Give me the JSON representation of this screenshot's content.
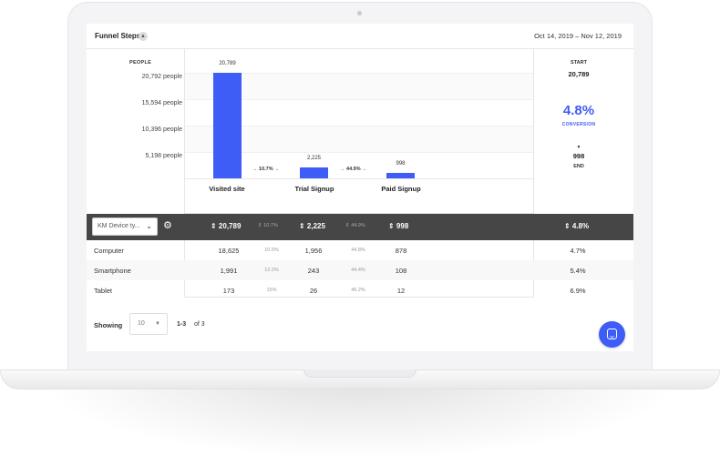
{
  "header": {
    "title": "Funnel Steps",
    "user_icon": "user-icon",
    "date_range": "Oct 14, 2019 – Nov 12, 2019"
  },
  "chart": {
    "y_label": "PEOPLE",
    "y_ticks": [
      "20,792 people",
      "15,594 people",
      "10,396 people",
      "5,198 people"
    ],
    "steps": [
      {
        "name": "Visited site",
        "value": 20789,
        "label": "20,789"
      },
      {
        "name": "Trial Signup",
        "value": 2225,
        "label": "2,225"
      },
      {
        "name": "Paid Signup",
        "value": 998,
        "label": "998"
      }
    ],
    "step_conversions": [
      "10.7%",
      "44.9%"
    ],
    "bar_color": "#3e5cf6"
  },
  "summary": {
    "start_label": "START",
    "start_value": "20,789",
    "conversion_pct": "4.8%",
    "conversion_label": "CONVERSION",
    "arrow": "▼",
    "end_value": "998",
    "end_label": "END"
  },
  "breakdown": {
    "dropdown_value": "KM Device ty...",
    "totals": {
      "step1": "⇕ 20,789",
      "conv1": "⇕ 10.7%",
      "step2": "⇕ 2,225",
      "conv2": "⇕ 44.9%",
      "step3": "⇕ 998",
      "overall": "⇕ 4.8%"
    },
    "rows": [
      {
        "name": "Computer",
        "step1": "18,625",
        "conv1": "10.5%",
        "step2": "1,956",
        "conv2": "44.8%",
        "step3": "878",
        "overall": "4.7%"
      },
      {
        "name": "Smartphone",
        "step1": "1,991",
        "conv1": "12.2%",
        "step2": "243",
        "conv2": "44.4%",
        "step3": "108",
        "overall": "5.4%"
      },
      {
        "name": "Tablet",
        "step1": "173",
        "conv1": "15%",
        "step2": "26",
        "conv2": "46.2%",
        "step3": "12",
        "overall": "6.9%"
      }
    ]
  },
  "pager": {
    "label": "Showing",
    "page_size": "10",
    "range": "1-3",
    "of_text": "of 3"
  }
}
